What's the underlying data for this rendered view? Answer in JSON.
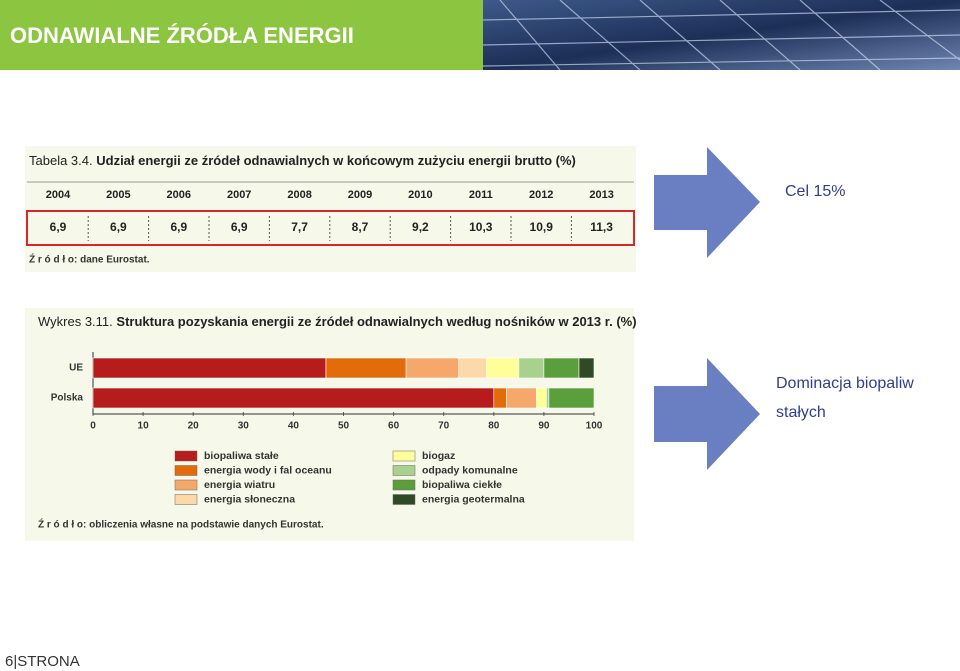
{
  "header": {
    "title": "ODNAWIALNE ŹRÓDŁA ENERGII"
  },
  "table": {
    "label": "Tabela 3.4.",
    "title": "Udział energii ze źródeł odnawialnych w końcowym zużyciu energii brutto (%)",
    "columns": [
      "2004",
      "2005",
      "2006",
      "2007",
      "2008",
      "2009",
      "2010",
      "2011",
      "2012",
      "2013"
    ],
    "rows": [
      [
        "6,9",
        "6,9",
        "6,9",
        "6,9",
        "7,7",
        "8,7",
        "9,2",
        "10,3",
        "10,9",
        "11,3"
      ]
    ],
    "source": "Ź r ó d ł o: dane Eurostat."
  },
  "chart_data": {
    "type": "bar",
    "orientation": "horizontal",
    "stacked": true,
    "label": "Wykres 3.11.",
    "title": "Struktura pozyskania energii ze źródeł odnawialnych według nośników w 2013 r. (%)",
    "categories": [
      "UE",
      "Polska"
    ],
    "series": [
      {
        "name": "biopaliwa stałe",
        "color": "#b71c1c",
        "values": [
          46.5,
          80
        ]
      },
      {
        "name": "energia wody i fal oceanu",
        "color": "#e36c0a",
        "values": [
          16,
          2.5
        ]
      },
      {
        "name": "energia wiatru",
        "color": "#f6a86a",
        "values": [
          10.5,
          6
        ]
      },
      {
        "name": "energia słoneczna",
        "color": "#fcd9a8",
        "values": [
          5.5,
          0
        ]
      },
      {
        "name": "biogaz",
        "color": "#ffff99",
        "values": [
          6.5,
          2
        ]
      },
      {
        "name": "odpady komunalne",
        "color": "#a9d18e",
        "values": [
          5,
          0.5
        ]
      },
      {
        "name": "biopaliwa ciekłe",
        "color": "#5b9e3c",
        "values": [
          7,
          9
        ]
      },
      {
        "name": "energia geotermalna",
        "color": "#2f4b26",
        "values": [
          3,
          0
        ]
      }
    ],
    "xlim": [
      0,
      100
    ],
    "xticks": [
      0,
      10,
      20,
      30,
      40,
      50,
      60,
      70,
      80,
      90,
      100
    ],
    "source": "Ź r ó d ł o: obliczenia własne na podstawie danych Eurostat."
  },
  "notes": [
    "Cel 15%",
    "Dominacja biopaliw",
    "stałych"
  ],
  "footer": "6|STRONA"
}
